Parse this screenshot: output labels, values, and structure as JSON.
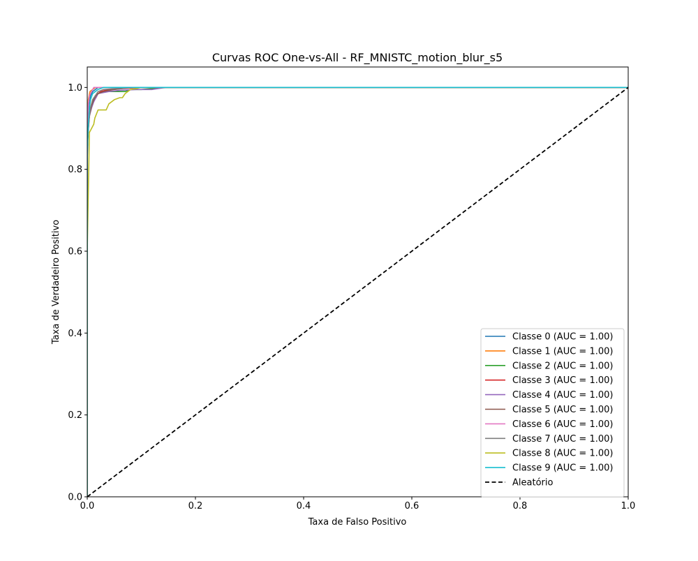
{
  "chart_data": {
    "type": "line",
    "title": "Curvas ROC One-vs-All - RF_MNISTC_motion_blur_s5",
    "xlabel": "Taxa de Falso Positivo",
    "ylabel": "Taxa de Verdadeiro Positivo",
    "xlim": [
      0.0,
      1.0
    ],
    "ylim": [
      0.0,
      1.05
    ],
    "xticks": [
      0.0,
      0.2,
      0.4,
      0.6,
      0.8,
      1.0
    ],
    "xtick_labels": [
      "0.0",
      "0.2",
      "0.4",
      "0.6",
      "0.8",
      "1.0"
    ],
    "yticks": [
      0.0,
      0.2,
      0.4,
      0.6,
      0.8,
      1.0
    ],
    "ytick_labels": [
      "0.0",
      "0.2",
      "0.4",
      "0.6",
      "0.8",
      "1.0"
    ],
    "grid": false,
    "legend_position": "lower-right",
    "series": [
      {
        "name": "Classe 0 (AUC = 1.00)",
        "color": "#1f77b4",
        "style": "solid",
        "x": [
          0.0,
          0.0,
          0.002,
          0.004,
          0.006,
          0.01,
          0.015,
          0.02,
          0.03,
          1.0
        ],
        "y": [
          0.0,
          0.82,
          0.92,
          0.96,
          0.98,
          0.99,
          0.995,
          1.0,
          1.0,
          1.0
        ]
      },
      {
        "name": "Classe 1 (AUC = 1.00)",
        "color": "#ff7f0e",
        "style": "solid",
        "x": [
          0.0,
          0.0,
          0.002,
          0.005,
          0.01,
          0.015,
          1.0
        ],
        "y": [
          0.0,
          0.9,
          0.97,
          0.99,
          0.995,
          1.0,
          1.0
        ]
      },
      {
        "name": "Classe 2 (AUC = 1.00)",
        "color": "#2ca02c",
        "style": "solid",
        "x": [
          0.0,
          0.0,
          0.003,
          0.006,
          0.01,
          0.015,
          0.02,
          0.03,
          0.05,
          0.07,
          0.08,
          0.1,
          0.12,
          0.14,
          1.0
        ],
        "y": [
          0.0,
          0.85,
          0.92,
          0.95,
          0.97,
          0.98,
          0.985,
          0.99,
          0.99,
          0.99,
          0.995,
          0.995,
          0.997,
          1.0,
          1.0
        ]
      },
      {
        "name": "Classe 3 (AUC = 1.00)",
        "color": "#d62728",
        "style": "solid",
        "x": [
          0.0,
          0.0,
          0.004,
          0.008,
          0.012,
          0.016,
          0.02,
          0.025,
          0.04,
          0.06,
          0.1,
          1.0
        ],
        "y": [
          0.0,
          0.88,
          0.94,
          0.96,
          0.97,
          0.975,
          0.985,
          0.99,
          0.995,
          0.997,
          1.0,
          1.0
        ]
      },
      {
        "name": "Classe 4 (AUC = 1.00)",
        "color": "#9467bd",
        "style": "solid",
        "x": [
          0.0,
          0.0,
          0.004,
          0.008,
          0.012,
          0.02,
          0.04,
          0.06,
          0.09,
          0.12,
          0.13,
          0.14,
          0.15,
          1.0
        ],
        "y": [
          0.0,
          0.87,
          0.93,
          0.95,
          0.965,
          0.985,
          0.99,
          0.993,
          0.995,
          0.995,
          0.997,
          0.999,
          1.0,
          1.0
        ]
      },
      {
        "name": "Classe 5 (AUC = 1.00)",
        "color": "#8c564b",
        "style": "solid",
        "x": [
          0.0,
          0.0,
          0.004,
          0.008,
          0.012,
          0.016,
          0.02,
          0.03,
          0.05,
          0.08,
          1.0
        ],
        "y": [
          0.0,
          0.86,
          0.93,
          0.955,
          0.97,
          0.98,
          0.985,
          0.99,
          0.995,
          1.0,
          1.0
        ]
      },
      {
        "name": "Classe 6 (AUC = 1.00)",
        "color": "#e377c2",
        "style": "solid",
        "x": [
          0.0,
          0.0,
          0.002,
          0.004,
          0.01,
          0.012,
          0.02,
          1.0
        ],
        "y": [
          0.0,
          0.9,
          0.96,
          0.98,
          0.995,
          1.0,
          1.0,
          1.0
        ]
      },
      {
        "name": "Classe 7 (AUC = 1.00)",
        "color": "#7f7f7f",
        "style": "solid",
        "x": [
          0.0,
          0.0,
          0.003,
          0.006,
          0.01,
          0.015,
          0.02,
          0.03,
          0.05,
          0.08,
          1.0
        ],
        "y": [
          0.0,
          0.86,
          0.92,
          0.95,
          0.97,
          0.98,
          0.99,
          0.995,
          0.997,
          1.0,
          1.0
        ]
      },
      {
        "name": "Classe 8 (AUC = 1.00)",
        "color": "#bcbd22",
        "style": "solid",
        "x": [
          0.0,
          0.0,
          0.004,
          0.008,
          0.012,
          0.014,
          0.02,
          0.025,
          0.03,
          0.035,
          0.04,
          0.05,
          0.06,
          0.065,
          0.07,
          0.075,
          0.08,
          0.09,
          0.1,
          1.0
        ],
        "y": [
          0.0,
          0.6,
          0.89,
          0.9,
          0.91,
          0.925,
          0.945,
          0.945,
          0.945,
          0.945,
          0.96,
          0.97,
          0.975,
          0.975,
          0.985,
          0.99,
          0.995,
          0.997,
          1.0,
          1.0
        ]
      },
      {
        "name": "Classe 9 (AUC = 1.00)",
        "color": "#17becf",
        "style": "solid",
        "x": [
          0.0,
          0.0,
          0.002,
          0.004,
          0.006,
          0.01,
          0.015,
          0.02,
          0.03,
          1.0
        ],
        "y": [
          0.0,
          0.85,
          0.91,
          0.95,
          0.97,
          0.985,
          0.99,
          0.995,
          1.0,
          1.0
        ]
      },
      {
        "name": "Aleatório",
        "color": "#000000",
        "style": "dashed",
        "x": [
          0.0,
          1.0
        ],
        "y": [
          0.0,
          1.0
        ]
      }
    ]
  }
}
